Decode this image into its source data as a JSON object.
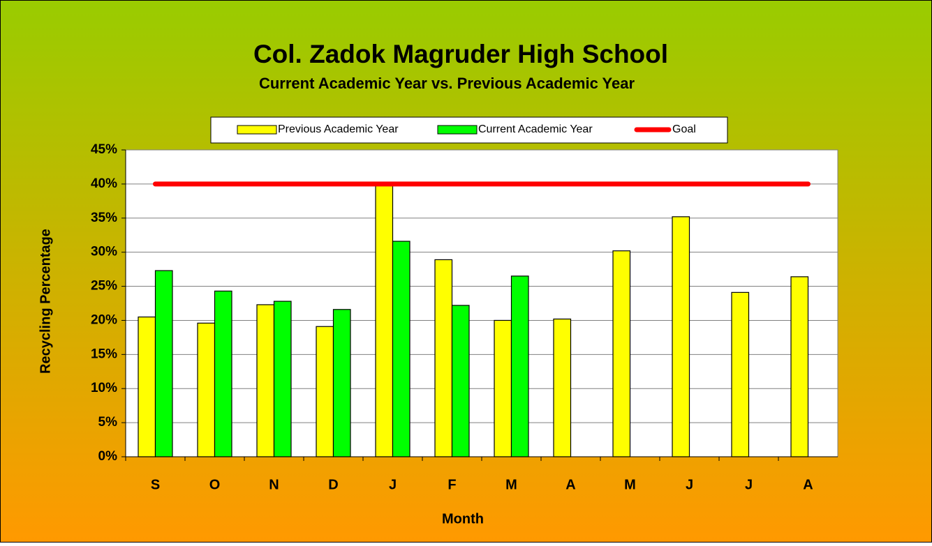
{
  "chart_data": {
    "type": "bar",
    "title": "Col. Zadok Magruder High School",
    "subtitle": "Current Academic Year vs. Previous Academic Year",
    "x_label": "Month",
    "y_label": "Recycling Percentage",
    "categories": [
      "S",
      "O",
      "N",
      "D",
      "J",
      "F",
      "M",
      "A",
      "M",
      "J",
      "J",
      "A"
    ],
    "series": [
      {
        "name": "Previous Academic Year",
        "color": "#ffff00",
        "values": [
          20.5,
          19.6,
          22.3,
          19.1,
          40,
          28.9,
          20,
          20.2,
          30.2,
          35.2,
          24.1,
          26.4
        ]
      },
      {
        "name": "Current Academic Year",
        "color": "#00ff00",
        "values": [
          27.3,
          24.3,
          22.8,
          21.6,
          31.6,
          22.2,
          26.5,
          null,
          null,
          null,
          null,
          null
        ]
      },
      {
        "name": "Goal",
        "color": "#ff0000",
        "type": "line",
        "values": [
          40,
          40,
          40,
          40,
          40,
          40,
          40,
          40,
          40,
          40,
          40,
          40
        ]
      }
    ],
    "ylim": [
      0,
      45
    ],
    "yticks": [
      {
        "value": 0,
        "label": "0%"
      },
      {
        "value": 5,
        "label": "5%"
      },
      {
        "value": 10,
        "label": "10%"
      },
      {
        "value": 15,
        "label": "15%"
      },
      {
        "value": 20,
        "label": "20%"
      },
      {
        "value": 25,
        "label": "25%"
      },
      {
        "value": 30,
        "label": "30%"
      },
      {
        "value": 35,
        "label": "35%"
      },
      {
        "value": 40,
        "label": "40%"
      },
      {
        "value": 45,
        "label": "45%"
      }
    ],
    "grid": true
  }
}
